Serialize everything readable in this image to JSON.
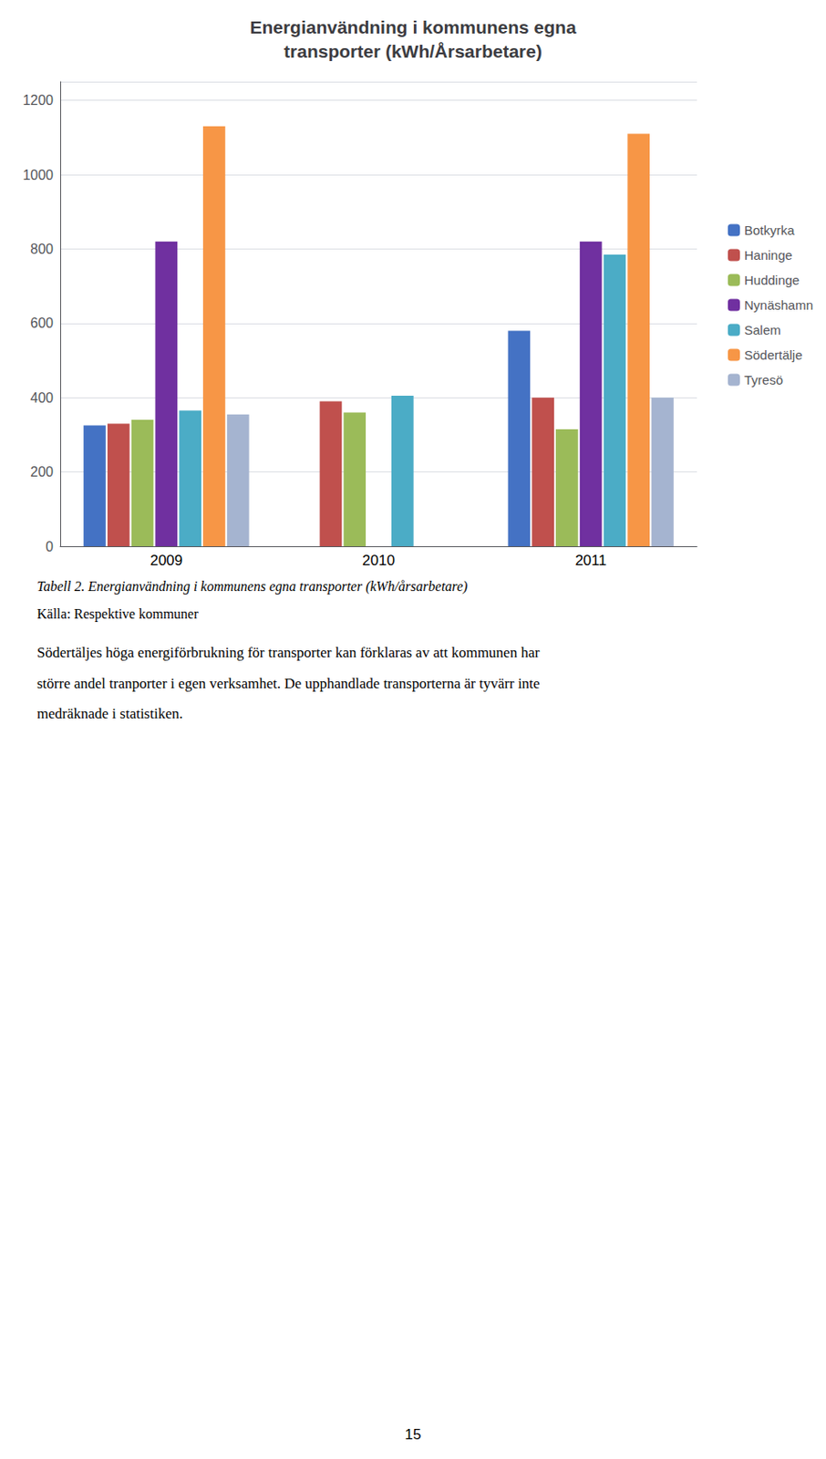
{
  "chart_data": {
    "type": "bar",
    "title": "Energianvändning i kommunens egna\ntransporter (kWh/Årsarbetare)",
    "categories": [
      "2009",
      "2010",
      "2011"
    ],
    "series": [
      {
        "name": "Botkyrka",
        "color": "#4472C4",
        "values": [
          325,
          0,
          580
        ]
      },
      {
        "name": "Haninge",
        "color": "#C0504D",
        "values": [
          330,
          390,
          400
        ]
      },
      {
        "name": "Huddinge",
        "color": "#9BBB59",
        "values": [
          340,
          360,
          315
        ]
      },
      {
        "name": "Nynäshamn",
        "color": "#7030A0",
        "values": [
          820,
          0,
          820
        ]
      },
      {
        "name": "Salem",
        "color": "#4BACC6",
        "values": [
          365,
          405,
          785
        ]
      },
      {
        "name": "Södertälje",
        "color": "#F79646",
        "values": [
          1130,
          0,
          1110
        ]
      },
      {
        "name": "Tyresö",
        "color": "#A5B4D0",
        "values": [
          355,
          0,
          400
        ]
      }
    ],
    "ylim": [
      0,
      1250
    ],
    "yticks": [
      0,
      200,
      400,
      600,
      800,
      1000,
      1200
    ],
    "grid": true,
    "legend": "right",
    "annotations": [
      "Tabell 2. Energianvändning i kommunens egna transporter (kWh/årsarbetare)",
      "Källa: Respektive kommuner",
      "Södertäljes höga energiförbrukning för transporter kan förklaras av att kommunen har",
      "större andel tranporter i egen verksamhet. De upphandlade transporterna är tyvärr inte",
      "medräknade i statistiken.",
      "15"
    ]
  }
}
